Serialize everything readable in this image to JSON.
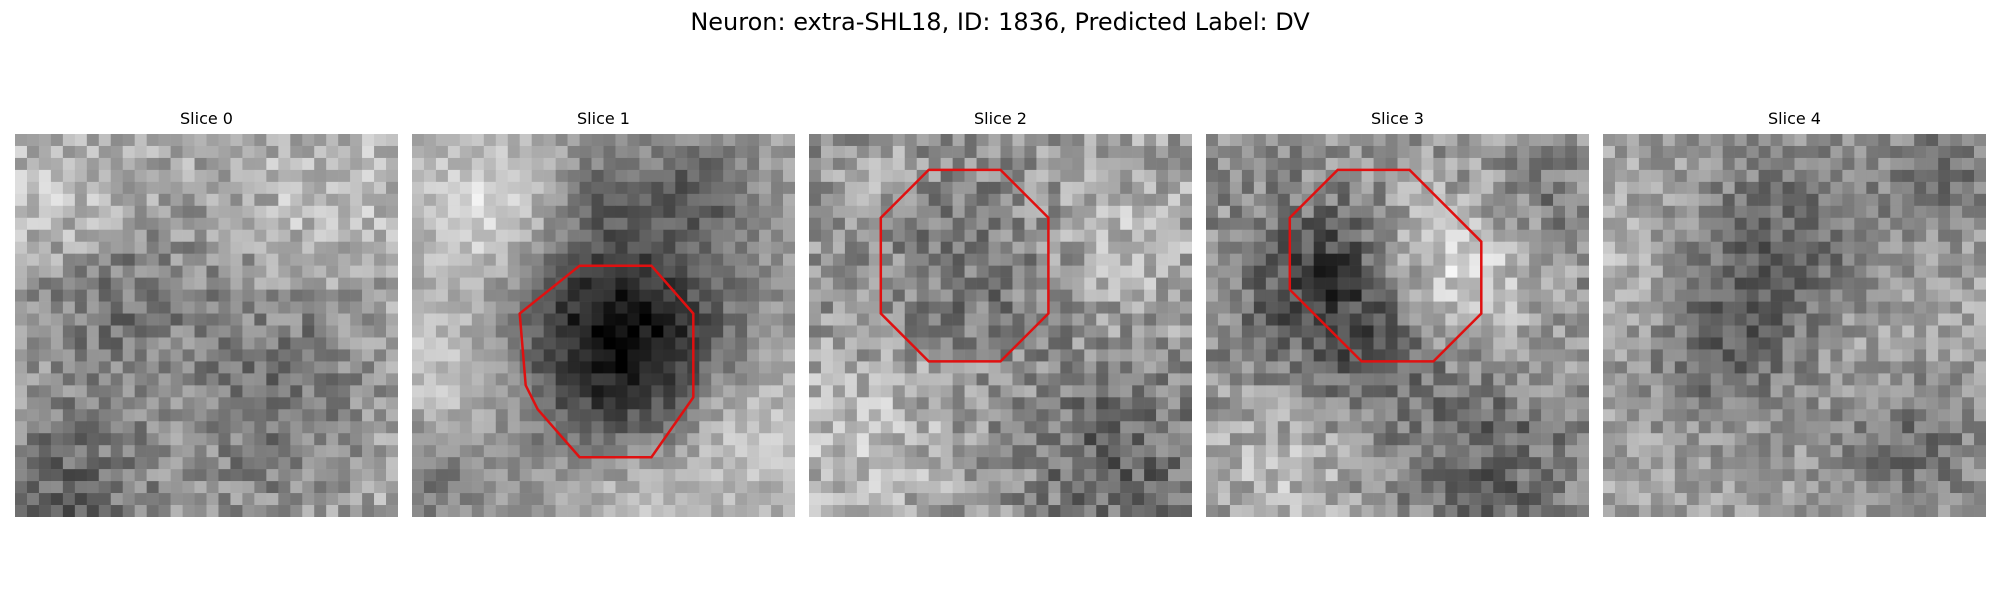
{
  "figure": {
    "title": "Neuron: extra-SHL18, ID: 1836, Predicted Label: DV"
  },
  "panels": [
    {
      "label": "Slice 0",
      "has_outline": false
    },
    {
      "label": "Slice 1",
      "has_outline": true
    },
    {
      "label": "Slice 2",
      "has_outline": true
    },
    {
      "label": "Slice 3",
      "has_outline": true
    },
    {
      "label": "Slice 4",
      "has_outline": false
    }
  ],
  "colors": {
    "outline": "#e01010",
    "background": "#ffffff",
    "colormap": "grayscale"
  }
}
